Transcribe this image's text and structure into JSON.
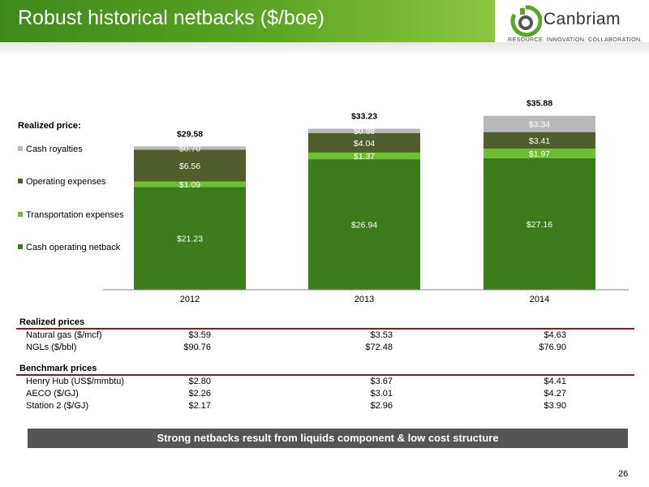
{
  "title": "Robust historical netbacks ($/boe)",
  "logo": {
    "name": "Canbriam",
    "tagline": "RESOURCE. INNOVATION. COLLABORATION."
  },
  "chart_data": {
    "type": "bar",
    "stacked": true,
    "legend_title": "Realized price:",
    "categories": [
      "2012",
      "2013",
      "2014"
    ],
    "series": [
      {
        "name": "Cash operating netback",
        "color": "#3a7d1a",
        "values": [
          21.23,
          26.94,
          27.16
        ],
        "labels": [
          "$21.23",
          "$26.94",
          "$27.16"
        ]
      },
      {
        "name": "Transportation expenses",
        "color": "#6cbf2e",
        "values": [
          1.09,
          1.37,
          1.97
        ],
        "labels": [
          "$1.09",
          "$1.37",
          "$1.97"
        ]
      },
      {
        "name": "Operating expenses",
        "color": "#4f5e2a",
        "values": [
          6.56,
          4.04,
          3.41
        ],
        "labels": [
          "$6.56",
          "$4.04",
          "$3.41"
        ]
      },
      {
        "name": "Cash royalties",
        "color": "#b9b9b9",
        "values": [
          0.7,
          0.88,
          3.34
        ],
        "labels": [
          "$0.70",
          "$0.88",
          "$3.34"
        ]
      }
    ],
    "totals": [
      "$29.58",
      "$33.23",
      "$35.88"
    ],
    "ylim": [
      0,
      36
    ],
    "legend_position": "left",
    "grid": false
  },
  "tables": [
    {
      "title": "Realized prices",
      "rows": [
        {
          "label": "Natural gas ($/mcf)",
          "values": [
            "$3.59",
            "$3.53",
            "$4.63"
          ]
        },
        {
          "label": "NGLs ($/bbl)",
          "values": [
            "$90.76",
            "$72.48",
            "$76.90"
          ]
        }
      ]
    },
    {
      "title": "Benchmark prices",
      "rows": [
        {
          "label": "Henry Hub (US$/mmbtu)",
          "values": [
            "$2.80",
            "$3.67",
            "$4.41"
          ]
        },
        {
          "label": "AECO ($/GJ)",
          "values": [
            "$2.26",
            "$3.01",
            "$4.27"
          ]
        },
        {
          "label": "Station 2 ($/GJ)",
          "values": [
            "$2.17",
            "$2.96",
            "$3.90"
          ]
        }
      ]
    }
  ],
  "banner": "Strong netbacks result from liquids component & low cost structure",
  "page_number": "26",
  "colors": {
    "header_green": "#5aa524",
    "rule_red": "#8b1a1a",
    "banner_gray": "#555555"
  }
}
